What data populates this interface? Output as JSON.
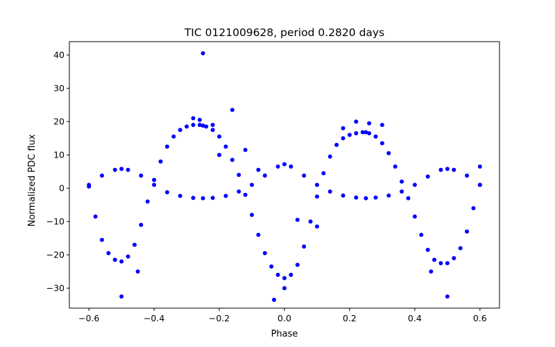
{
  "chart_data": {
    "type": "scatter",
    "title": "TIC 0121009628, period 0.2820 days",
    "xlabel": "Phase",
    "ylabel": "Normalized PDC flux",
    "xlim": [
      -0.66,
      0.66
    ],
    "ylim": [
      -36,
      44
    ],
    "xticks": [
      -0.6,
      -0.4,
      -0.2,
      0.0,
      0.2,
      0.4,
      0.6
    ],
    "xtick_labels": [
      "−0.6",
      "−0.4",
      "−0.2",
      "0.0",
      "0.2",
      "0.4",
      "0.6"
    ],
    "yticks": [
      -30,
      -20,
      -10,
      0,
      10,
      20,
      30,
      40
    ],
    "ytick_labels": [
      "−30",
      "−20",
      "−10",
      "0",
      "10",
      "20",
      "30",
      "40"
    ],
    "grid": false,
    "marker_color": "#0000ff",
    "series": [
      {
        "name": "",
        "x": [
          -0.6,
          -0.58,
          -0.56,
          -0.54,
          -0.52,
          -0.5,
          -0.48,
          -0.46,
          -0.44,
          -0.42,
          -0.4,
          -0.38,
          -0.36,
          -0.34,
          -0.32,
          -0.3,
          -0.28,
          -0.26,
          -0.25,
          -0.24,
          -0.22,
          -0.2,
          -0.18,
          -0.16,
          -0.14,
          -0.12,
          -0.1,
          -0.08,
          -0.06,
          -0.04,
          -0.02,
          0.0,
          0.02,
          0.04,
          0.06,
          0.08,
          0.1,
          0.12,
          0.14,
          0.16,
          0.18,
          0.2,
          0.22,
          0.24,
          0.25,
          0.26,
          0.28,
          0.3,
          0.32,
          0.34,
          0.36,
          0.38,
          0.4,
          0.42,
          0.44,
          0.46,
          0.48,
          0.5,
          0.52,
          0.54,
          0.56,
          0.58,
          0.6
        ],
        "y": [
          0.5,
          -8.5,
          -15.5,
          -19.5,
          -21.5,
          -22.0,
          -20.5,
          -17.0,
          -11.0,
          -4.0,
          2.5,
          8.0,
          12.5,
          15.5,
          17.5,
          18.5,
          19.0,
          19.0,
          18.8,
          18.5,
          17.5,
          15.5,
          12.5,
          8.5,
          4.0,
          -2.0,
          -8.0,
          -14.0,
          -19.5,
          -23.5,
          -26.0,
          -27.0,
          -26.0,
          -23.0,
          -17.5,
          -10.0,
          -2.5,
          4.5,
          9.5,
          13.0,
          15.0,
          16.0,
          16.5,
          16.8,
          16.8,
          16.5,
          15.5,
          13.5,
          10.5,
          6.5,
          2.0,
          -3.0,
          -8.5,
          -14.0,
          -18.5,
          -21.5,
          -22.5,
          -22.5,
          -21.0,
          -18.0,
          -13.0,
          -6.0,
          1.0
        ]
      },
      {
        "name": "",
        "x": [
          -0.6,
          -0.56,
          -0.52,
          -0.5,
          -0.48,
          -0.44,
          -0.4,
          -0.36,
          -0.32,
          -0.28,
          -0.25,
          -0.22,
          -0.18,
          -0.14,
          -0.1,
          -0.06,
          -0.02,
          0.0,
          0.02,
          0.06,
          0.1,
          0.14,
          0.18,
          0.22,
          0.25,
          0.28,
          0.32,
          0.36,
          0.4,
          0.44,
          0.48,
          0.5,
          0.52,
          0.56,
          0.6
        ],
        "y": [
          1.0,
          3.8,
          5.5,
          5.8,
          5.5,
          3.8,
          1.0,
          -1.2,
          -2.3,
          -2.9,
          -3.0,
          -2.9,
          -2.3,
          -1.0,
          1.0,
          3.8,
          6.5,
          7.2,
          6.5,
          3.8,
          1.0,
          -1.0,
          -2.2,
          -2.8,
          -3.0,
          -2.8,
          -2.2,
          -1.0,
          1.0,
          3.5,
          5.5,
          5.8,
          5.5,
          3.8,
          1.0
        ]
      },
      {
        "name": "",
        "x": [
          -0.5,
          -0.45,
          -0.28,
          -0.26,
          -0.25,
          -0.22,
          -0.2,
          -0.16,
          -0.12,
          -0.08,
          -0.032,
          0.0,
          0.04,
          0.1,
          0.18,
          0.22,
          0.26,
          0.3,
          0.45,
          0.5,
          0.6
        ],
        "y": [
          -32.5,
          -25.0,
          21.0,
          20.5,
          40.5,
          19.0,
          10.0,
          23.5,
          11.5,
          5.5,
          -33.5,
          -30.0,
          -9.5,
          -11.5,
          18.0,
          20.0,
          19.5,
          19.0,
          -25.0,
          -32.5,
          6.5
        ]
      }
    ]
  }
}
